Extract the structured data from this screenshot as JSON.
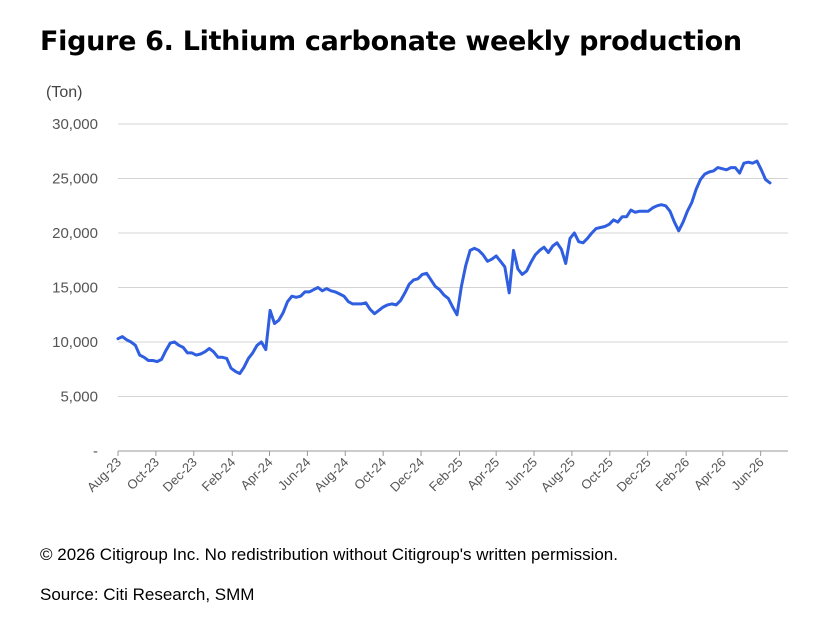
{
  "figure": {
    "title": "Figure 6. Lithium carbonate weekly production",
    "unit_label": "(Ton)",
    "copyright": "© 2026 Citigroup Inc. No redistribution without Citigroup's written permission.",
    "source": "Source: Citi Research, SMM"
  },
  "colors": {
    "line": "#2f5ee0",
    "grid": "#d4d4d4",
    "axis": "#999999",
    "tick_text": "#555555"
  },
  "chart_data": {
    "type": "line",
    "title": "Figure 6. Lithium carbonate weekly production",
    "ylabel": "(Ton)",
    "xlabel": "",
    "ylim": [
      0,
      30000
    ],
    "yticks": [
      0,
      5000,
      10000,
      15000,
      20000,
      25000,
      30000
    ],
    "ytick_labels": [
      "-",
      "5,000",
      "10,000",
      "15,000",
      "20,000",
      "25,000",
      "30,000"
    ],
    "xlim": [
      "2023-08-01",
      "2026-07-15"
    ],
    "xtick_labels": [
      "Aug-23",
      "Oct-23",
      "Dec-23",
      "Feb-24",
      "Apr-24",
      "Jun-24",
      "Aug-24",
      "Oct-24",
      "Dec-24",
      "Feb-25",
      "Apr-25",
      "Jun-25",
      "Aug-25",
      "Oct-25",
      "Dec-25",
      "Feb-26",
      "Apr-26",
      "Jun-26"
    ],
    "xtick_dates": [
      "2023-08-01",
      "2023-10-01",
      "2023-12-01",
      "2024-02-01",
      "2024-04-01",
      "2024-06-01",
      "2024-08-01",
      "2024-10-01",
      "2024-12-01",
      "2025-02-01",
      "2025-04-01",
      "2025-06-01",
      "2025-08-01",
      "2025-10-01",
      "2025-12-01",
      "2026-02-01",
      "2026-04-01",
      "2026-06-01"
    ],
    "grid": true,
    "series": [
      {
        "name": "",
        "points": [
          [
            "2023-08-01",
            10300
          ],
          [
            "2023-08-08",
            10500
          ],
          [
            "2023-08-15",
            10200
          ],
          [
            "2023-08-22",
            10000
          ],
          [
            "2023-08-29",
            9700
          ],
          [
            "2023-09-05",
            8800
          ],
          [
            "2023-09-12",
            8600
          ],
          [
            "2023-09-19",
            8300
          ],
          [
            "2023-09-26",
            8300
          ],
          [
            "2023-10-03",
            8200
          ],
          [
            "2023-10-10",
            8400
          ],
          [
            "2023-10-17",
            9200
          ],
          [
            "2023-10-24",
            9900
          ],
          [
            "2023-10-31",
            10000
          ],
          [
            "2023-11-07",
            9700
          ],
          [
            "2023-11-14",
            9500
          ],
          [
            "2023-11-21",
            9000
          ],
          [
            "2023-11-28",
            9000
          ],
          [
            "2023-12-05",
            8800
          ],
          [
            "2023-12-12",
            8900
          ],
          [
            "2023-12-19",
            9100
          ],
          [
            "2023-12-26",
            9400
          ],
          [
            "2024-01-02",
            9100
          ],
          [
            "2024-01-09",
            8600
          ],
          [
            "2024-01-16",
            8600
          ],
          [
            "2024-01-23",
            8500
          ],
          [
            "2024-01-30",
            7600
          ],
          [
            "2024-02-06",
            7300
          ],
          [
            "2024-02-13",
            7100
          ],
          [
            "2024-02-20",
            7700
          ],
          [
            "2024-02-27",
            8500
          ],
          [
            "2024-03-05",
            9000
          ],
          [
            "2024-03-12",
            9700
          ],
          [
            "2024-03-19",
            10000
          ],
          [
            "2024-03-26",
            9300
          ],
          [
            "2024-04-02",
            12900
          ],
          [
            "2024-04-09",
            11700
          ],
          [
            "2024-04-16",
            12000
          ],
          [
            "2024-04-23",
            12700
          ],
          [
            "2024-04-30",
            13700
          ],
          [
            "2024-05-07",
            14200
          ],
          [
            "2024-05-14",
            14100
          ],
          [
            "2024-05-21",
            14200
          ],
          [
            "2024-05-28",
            14600
          ],
          [
            "2024-06-04",
            14600
          ],
          [
            "2024-06-11",
            14800
          ],
          [
            "2024-06-18",
            15000
          ],
          [
            "2024-06-25",
            14700
          ],
          [
            "2024-07-02",
            14900
          ],
          [
            "2024-07-09",
            14700
          ],
          [
            "2024-07-16",
            14600
          ],
          [
            "2024-07-23",
            14400
          ],
          [
            "2024-07-30",
            14200
          ],
          [
            "2024-08-06",
            13700
          ],
          [
            "2024-08-13",
            13500
          ],
          [
            "2024-08-20",
            13500
          ],
          [
            "2024-08-27",
            13500
          ],
          [
            "2024-09-03",
            13600
          ],
          [
            "2024-09-10",
            13000
          ],
          [
            "2024-09-17",
            12600
          ],
          [
            "2024-09-24",
            12900
          ],
          [
            "2024-10-01",
            13200
          ],
          [
            "2024-10-08",
            13400
          ],
          [
            "2024-10-15",
            13500
          ],
          [
            "2024-10-22",
            13400
          ],
          [
            "2024-10-29",
            13800
          ],
          [
            "2024-11-05",
            14500
          ],
          [
            "2024-11-12",
            15300
          ],
          [
            "2024-11-19",
            15700
          ],
          [
            "2024-11-26",
            15800
          ],
          [
            "2024-12-03",
            16200
          ],
          [
            "2024-12-10",
            16300
          ],
          [
            "2024-12-17",
            15700
          ],
          [
            "2024-12-24",
            15100
          ],
          [
            "2024-12-31",
            14800
          ],
          [
            "2025-01-07",
            14300
          ],
          [
            "2025-01-14",
            14000
          ],
          [
            "2025-01-21",
            13200
          ],
          [
            "2025-01-28",
            12500
          ],
          [
            "2025-02-04",
            15100
          ],
          [
            "2025-02-11",
            17000
          ],
          [
            "2025-02-18",
            18400
          ],
          [
            "2025-02-25",
            18600
          ],
          [
            "2025-03-04",
            18400
          ],
          [
            "2025-03-11",
            18000
          ],
          [
            "2025-03-18",
            17400
          ],
          [
            "2025-03-25",
            17600
          ],
          [
            "2025-04-01",
            17900
          ],
          [
            "2025-04-08",
            17400
          ],
          [
            "2025-04-15",
            16900
          ],
          [
            "2025-04-22",
            14500
          ],
          [
            "2025-04-29",
            18400
          ],
          [
            "2025-05-06",
            16700
          ],
          [
            "2025-05-13",
            16200
          ],
          [
            "2025-05-20",
            16500
          ],
          [
            "2025-05-27",
            17300
          ],
          [
            "2025-06-03",
            18000
          ],
          [
            "2025-06-10",
            18400
          ],
          [
            "2025-06-17",
            18700
          ],
          [
            "2025-06-24",
            18200
          ],
          [
            "2025-07-01",
            18800
          ],
          [
            "2025-07-08",
            19100
          ],
          [
            "2025-07-15",
            18500
          ],
          [
            "2025-07-22",
            17200
          ],
          [
            "2025-07-29",
            19500
          ],
          [
            "2025-08-05",
            20000
          ],
          [
            "2025-08-12",
            19200
          ],
          [
            "2025-08-19",
            19100
          ],
          [
            "2025-08-26",
            19500
          ],
          [
            "2025-09-02",
            20000
          ],
          [
            "2025-09-09",
            20400
          ],
          [
            "2025-09-16",
            20500
          ],
          [
            "2025-09-23",
            20600
          ],
          [
            "2025-09-30",
            20800
          ],
          [
            "2025-10-07",
            21200
          ],
          [
            "2025-10-14",
            21000
          ],
          [
            "2025-10-21",
            21500
          ],
          [
            "2025-10-28",
            21500
          ],
          [
            "2025-11-04",
            22100
          ],
          [
            "2025-11-11",
            21900
          ],
          [
            "2025-11-18",
            22000
          ],
          [
            "2025-11-25",
            22000
          ],
          [
            "2025-12-02",
            22000
          ],
          [
            "2025-12-09",
            22300
          ],
          [
            "2025-12-16",
            22500
          ],
          [
            "2025-12-23",
            22600
          ],
          [
            "2025-12-30",
            22500
          ],
          [
            "2026-01-06",
            22000
          ],
          [
            "2026-01-13",
            21000
          ],
          [
            "2026-01-20",
            20200
          ],
          [
            "2026-01-27",
            21000
          ],
          [
            "2026-02-03",
            22000
          ],
          [
            "2026-02-10",
            22800
          ],
          [
            "2026-02-17",
            24000
          ],
          [
            "2026-02-24",
            24900
          ],
          [
            "2026-03-03",
            25400
          ],
          [
            "2026-03-10",
            25600
          ],
          [
            "2026-03-17",
            25700
          ],
          [
            "2026-03-24",
            26000
          ],
          [
            "2026-03-31",
            25900
          ],
          [
            "2026-04-07",
            25800
          ],
          [
            "2026-04-14",
            26000
          ],
          [
            "2026-04-21",
            26000
          ],
          [
            "2026-04-28",
            25500
          ],
          [
            "2026-05-05",
            26400
          ],
          [
            "2026-05-12",
            26500
          ],
          [
            "2026-05-19",
            26400
          ],
          [
            "2026-05-26",
            26600
          ],
          [
            "2026-06-02",
            25800
          ],
          [
            "2026-06-09",
            24900
          ],
          [
            "2026-06-16",
            24600
          ]
        ]
      }
    ]
  }
}
